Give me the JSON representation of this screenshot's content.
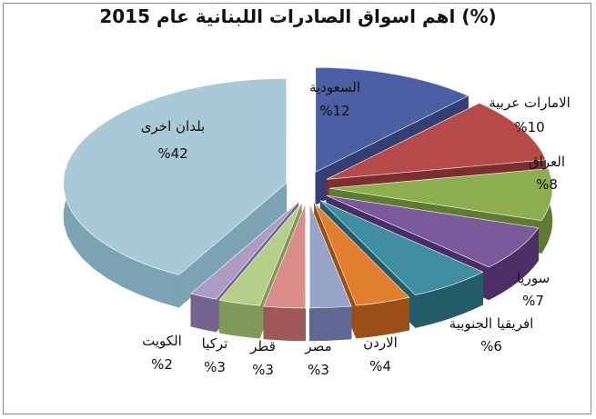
{
  "chart_data": {
    "type": "pie",
    "title": "اهم اسواق الصادرات اللبنانية عام 2015 (%)",
    "slices": [
      {
        "label": "السعودية",
        "value": 12,
        "display": "%12",
        "color": "#4d5fa3",
        "side": "#353f73"
      },
      {
        "label": "الامارات عربية",
        "value": 10,
        "display": "%10",
        "color": "#b54a48",
        "side": "#7c2f2e"
      },
      {
        "label": "العراق",
        "value": 8,
        "display": "%8",
        "color": "#8cae4f",
        "side": "#5f7a31"
      },
      {
        "label": "سوريا",
        "value": 7,
        "display": "%7",
        "color": "#7a5a9a",
        "side": "#4a2f66"
      },
      {
        "label": "افريقيا الجنوبية",
        "value": 6,
        "display": "%6",
        "color": "#3f8ea0",
        "side": "#245b68"
      },
      {
        "label": "الاردن",
        "value": 4,
        "display": "%4",
        "color": "#e27f2e",
        "side": "#9b4e15"
      },
      {
        "label": "مصر",
        "value": 3,
        "display": "%3",
        "color": "#97a4c9",
        "side": "#5e6890"
      },
      {
        "label": "قطر",
        "value": 3,
        "display": "%3",
        "color": "#d98c8a",
        "side": "#a05857"
      },
      {
        "label": "تركيا",
        "value": 3,
        "display": "%3",
        "color": "#b4cf8a",
        "side": "#7f9a58"
      },
      {
        "label": "الكويت",
        "value": 2,
        "display": "%2",
        "color": "#ac9bc3",
        "side": "#75638f"
      },
      {
        "label": "بلدان اخرى",
        "value": 42,
        "display": "%42",
        "color": "#a9c9d6",
        "side": "#7ba3b3"
      }
    ]
  }
}
